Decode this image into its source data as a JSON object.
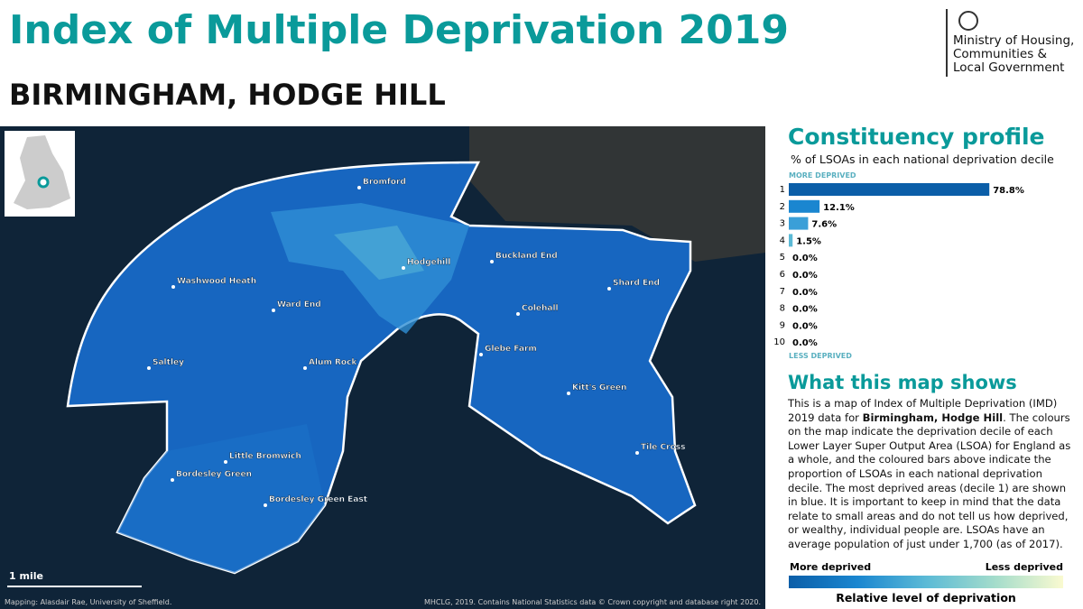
{
  "header": {
    "title": "Index of Multiple Deprivation 2019",
    "subtitle": "BIRMINGHAM, HODGE HILL",
    "logo_lines": [
      "Ministry of Housing,",
      "Communities &",
      "Local Government"
    ]
  },
  "map": {
    "places": [
      "Bromford",
      "Washwood Heath",
      "Hodgehill",
      "Buckland End",
      "Shard End",
      "Ward End",
      "Colehall",
      "Glebe Farm",
      "Saltley",
      "Alum Rock",
      "Kitt's Green",
      "Tile Cross",
      "Little Bromwich",
      "Bordesley Green",
      "Bordesley Green East"
    ],
    "scale_label": "1 mile",
    "credit_left": "Mapping: Alasdair Rae, University of Sheffield.",
    "credit_right": "MHCLG, 2019. Contains National Statistics data © Crown copyright and database right 2020."
  },
  "profile": {
    "title": "Constituency profile",
    "subtitle": "% of LSOAs in each national deprivation decile",
    "top_label": "MORE DEPRIVED",
    "bottom_label": "LESS DEPRIVED",
    "chart_data": {
      "type": "bar",
      "categories": [
        "1",
        "2",
        "3",
        "4",
        "5",
        "6",
        "7",
        "8",
        "9",
        "10"
      ],
      "values": [
        78.8,
        12.1,
        7.6,
        1.5,
        0,
        0,
        0,
        0,
        0,
        0
      ],
      "value_labels": [
        "78.8%",
        "12.1%",
        "7.6%",
        "1.5%",
        "0.0%",
        "0.0%",
        "0.0%",
        "0.0%",
        "0.0%",
        "0.0%"
      ],
      "colors": [
        "#0b5ea8",
        "#1a86d0",
        "#3a9fd8",
        "#5bbad6",
        "#7fcdd0",
        "#a3dccb",
        "#c3e8c6",
        "#dff2c4",
        "#eef8c8",
        "#fafad0"
      ]
    }
  },
  "about": {
    "title": "What this map shows",
    "text_before": "This is a map of Index of Multiple Deprivation (IMD) 2019 data for ",
    "text_bold": "Birmingham, Hodge Hill",
    "text_after": ". The colours on the map indicate the deprivation decile of each Lower Layer Super Output Area (LSOA) for England as a whole, and the coloured bars above indicate the proportion of LSOAs in each national deprivation decile. The most deprived areas (decile 1) are shown in blue. It is important to keep in mind that the data relate to small areas and do not tell us how deprived, or wealthy, individual people are. LSOAs have an average population of just under 1,700 (as of 2017)."
  },
  "legend": {
    "left": "More deprived",
    "right": "Less deprived",
    "caption": "Relative level of deprivation"
  }
}
